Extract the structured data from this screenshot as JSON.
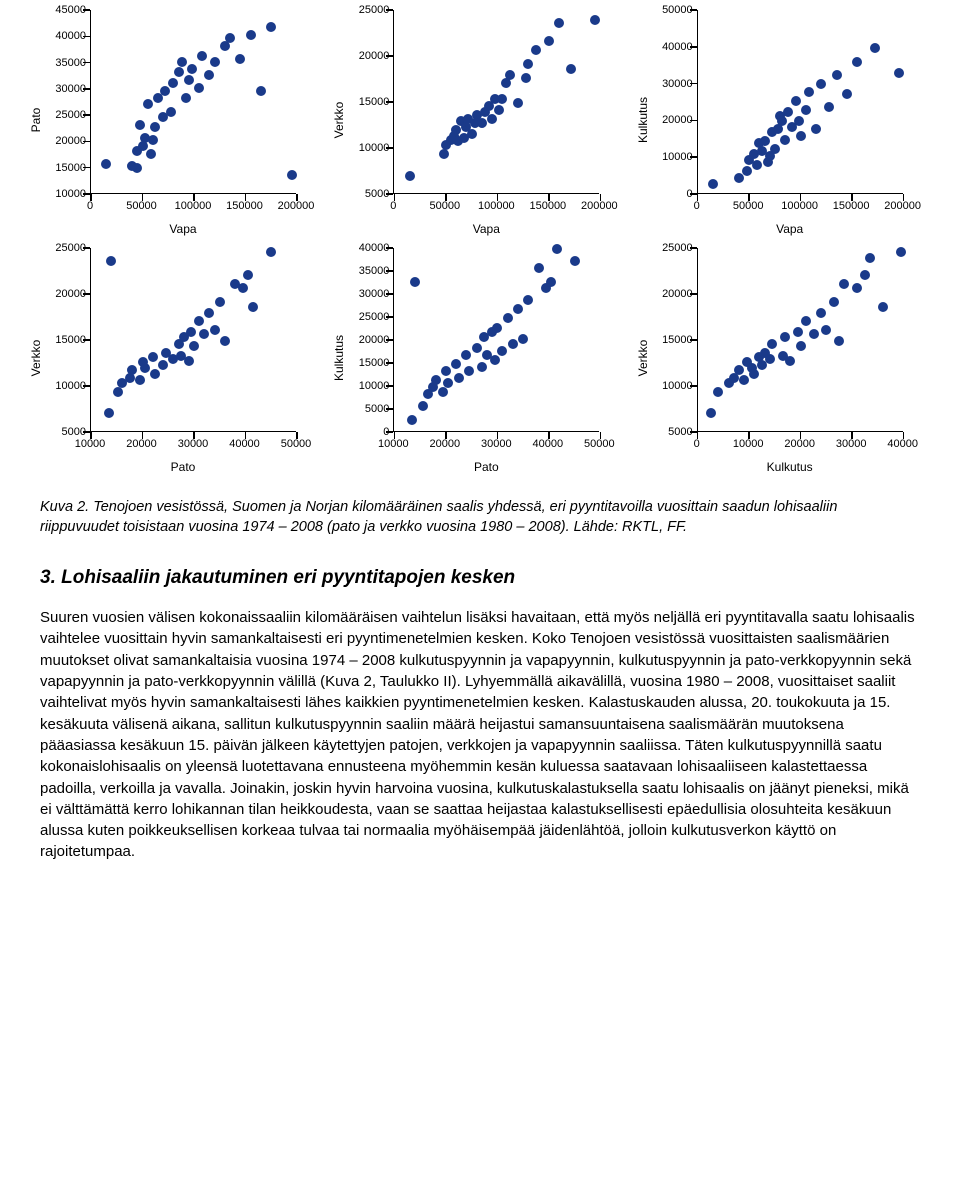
{
  "charts": [
    {
      "ylabel": "Pato",
      "xlabel": "Vapa",
      "ylim": [
        10000,
        45000
      ],
      "ytick_step": 5000,
      "xlim": [
        0,
        200000
      ],
      "xtick_step": 50000,
      "points": [
        [
          15000,
          15500
        ],
        [
          45000,
          14800
        ],
        [
          40000,
          15200
        ],
        [
          45000,
          18000
        ],
        [
          52000,
          20500
        ],
        [
          58000,
          17500
        ],
        [
          48000,
          23000
        ],
        [
          62000,
          22500
        ],
        [
          55000,
          27000
        ],
        [
          70000,
          24500
        ],
        [
          65000,
          28000
        ],
        [
          72000,
          29500
        ],
        [
          78000,
          25500
        ],
        [
          80000,
          31000
        ],
        [
          85000,
          33000
        ],
        [
          92000,
          28000
        ],
        [
          95000,
          31500
        ],
        [
          88000,
          35000
        ],
        [
          98000,
          33500
        ],
        [
          105000,
          30000
        ],
        [
          108000,
          36000
        ],
        [
          115000,
          32500
        ],
        [
          120000,
          35000
        ],
        [
          130000,
          38000
        ],
        [
          135000,
          39500
        ],
        [
          145000,
          35500
        ],
        [
          155000,
          40000
        ],
        [
          165000,
          29500
        ],
        [
          175000,
          41500
        ],
        [
          195000,
          13500
        ],
        [
          60000,
          20000
        ],
        [
          50000,
          19000
        ]
      ]
    },
    {
      "ylabel": "Verkko",
      "xlabel": "Vapa",
      "ylim": [
        5000,
        25000
      ],
      "ytick_step": 5000,
      "xlim": [
        0,
        200000
      ],
      "xtick_step": 50000,
      "points": [
        [
          15000,
          6800
        ],
        [
          48000,
          9200
        ],
        [
          50000,
          10200
        ],
        [
          55000,
          10800
        ],
        [
          58000,
          11200
        ],
        [
          62000,
          10600
        ],
        [
          60000,
          11800
        ],
        [
          68000,
          11000
        ],
        [
          65000,
          12800
        ],
        [
          70000,
          12200
        ],
        [
          75000,
          11400
        ],
        [
          72000,
          13000
        ],
        [
          80000,
          13500
        ],
        [
          78000,
          12600
        ],
        [
          85000,
          12600
        ],
        [
          88000,
          13800
        ],
        [
          92000,
          14500
        ],
        [
          95000,
          13000
        ],
        [
          98000,
          15200
        ],
        [
          105000,
          15200
        ],
        [
          108000,
          17000
        ],
        [
          112000,
          17800
        ],
        [
          120000,
          14800
        ],
        [
          128000,
          17500
        ],
        [
          130000,
          19000
        ],
        [
          138000,
          20500
        ],
        [
          150000,
          21500
        ],
        [
          160000,
          23500
        ],
        [
          172000,
          18500
        ],
        [
          195000,
          23800
        ],
        [
          102000,
          14000
        ]
      ]
    },
    {
      "ylabel": "Kulkutus",
      "xlabel": "Vapa",
      "ylim": [
        0,
        50000
      ],
      "ytick_step": 10000,
      "xlim": [
        0,
        200000
      ],
      "xtick_step": 50000,
      "points": [
        [
          15000,
          2500
        ],
        [
          40000,
          4000
        ],
        [
          48000,
          6000
        ],
        [
          50000,
          9000
        ],
        [
          55000,
          10500
        ],
        [
          58000,
          7500
        ],
        [
          62000,
          11500
        ],
        [
          60000,
          13500
        ],
        [
          65000,
          14000
        ],
        [
          68000,
          8500
        ],
        [
          72000,
          16500
        ],
        [
          75000,
          12000
        ],
        [
          78000,
          17500
        ],
        [
          80000,
          21000
        ],
        [
          85000,
          14500
        ],
        [
          82000,
          19500
        ],
        [
          88000,
          22000
        ],
        [
          92000,
          18000
        ],
        [
          95000,
          25000
        ],
        [
          98000,
          19500
        ],
        [
          105000,
          22500
        ],
        [
          108000,
          27500
        ],
        [
          115000,
          17500
        ],
        [
          120000,
          29500
        ],
        [
          128000,
          23500
        ],
        [
          135000,
          32000
        ],
        [
          145000,
          27000
        ],
        [
          155000,
          35500
        ],
        [
          172000,
          39500
        ],
        [
          195000,
          32500
        ],
        [
          70000,
          10000
        ],
        [
          100000,
          15500
        ]
      ]
    },
    {
      "ylabel": "Verkko",
      "xlabel": "Pato",
      "ylim": [
        5000,
        25000
      ],
      "ytick_step": 5000,
      "xlim": [
        10000,
        50000
      ],
      "xtick_step": 10000,
      "points": [
        [
          13500,
          7000
        ],
        [
          13800,
          23500
        ],
        [
          15200,
          9200
        ],
        [
          16000,
          10200
        ],
        [
          17500,
          10800
        ],
        [
          18000,
          11600
        ],
        [
          19500,
          10500
        ],
        [
          20000,
          12500
        ],
        [
          20500,
          11800
        ],
        [
          22500,
          11200
        ],
        [
          22000,
          13000
        ],
        [
          24000,
          12200
        ],
        [
          24500,
          13500
        ],
        [
          26000,
          12800
        ],
        [
          27000,
          14500
        ],
        [
          27500,
          13200
        ],
        [
          28000,
          15200
        ],
        [
          29000,
          12600
        ],
        [
          29500,
          15800
        ],
        [
          30000,
          14200
        ],
        [
          31000,
          17000
        ],
        [
          32000,
          15500
        ],
        [
          33000,
          17800
        ],
        [
          34000,
          16000
        ],
        [
          35000,
          19000
        ],
        [
          36000,
          14800
        ],
        [
          38000,
          21000
        ],
        [
          39500,
          20500
        ],
        [
          40500,
          22000
        ],
        [
          41500,
          18500
        ],
        [
          45000,
          24500
        ]
      ]
    },
    {
      "ylabel": "Kulkutus",
      "xlabel": "Pato",
      "ylim": [
        0,
        40000
      ],
      "ytick_step": 5000,
      "xlim": [
        10000,
        50000
      ],
      "xtick_step": 10000,
      "points": [
        [
          13500,
          2500
        ],
        [
          14000,
          32500
        ],
        [
          15500,
          5500
        ],
        [
          16500,
          8000
        ],
        [
          17500,
          9500
        ],
        [
          18000,
          11000
        ],
        [
          19500,
          8500
        ],
        [
          20000,
          13000
        ],
        [
          20500,
          10500
        ],
        [
          22000,
          14500
        ],
        [
          22500,
          11500
        ],
        [
          24000,
          16500
        ],
        [
          24500,
          13000
        ],
        [
          26000,
          18000
        ],
        [
          27000,
          14000
        ],
        [
          27500,
          20500
        ],
        [
          28000,
          16500
        ],
        [
          29000,
          21500
        ],
        [
          29500,
          15500
        ],
        [
          30000,
          22500
        ],
        [
          31000,
          17500
        ],
        [
          32000,
          24500
        ],
        [
          33000,
          19000
        ],
        [
          34000,
          26500
        ],
        [
          35000,
          20000
        ],
        [
          36000,
          28500
        ],
        [
          38000,
          35500
        ],
        [
          39500,
          31000
        ],
        [
          40500,
          32500
        ],
        [
          41500,
          39500
        ],
        [
          45000,
          37000
        ]
      ]
    },
    {
      "ylabel": "Verkko",
      "xlabel": "Kulkutus",
      "ylim": [
        5000,
        25000
      ],
      "ytick_step": 5000,
      "xlim": [
        0,
        40000
      ],
      "xtick_step": 10000,
      "points": [
        [
          2500,
          7000
        ],
        [
          4000,
          9200
        ],
        [
          6000,
          10200
        ],
        [
          7000,
          10800
        ],
        [
          8000,
          11600
        ],
        [
          9000,
          10500
        ],
        [
          9500,
          12500
        ],
        [
          10500,
          11800
        ],
        [
          11000,
          11200
        ],
        [
          12000,
          13000
        ],
        [
          12500,
          12200
        ],
        [
          13000,
          13500
        ],
        [
          14000,
          12800
        ],
        [
          14500,
          14500
        ],
        [
          16500,
          13200
        ],
        [
          17000,
          15200
        ],
        [
          18000,
          12600
        ],
        [
          19500,
          15800
        ],
        [
          20000,
          14200
        ],
        [
          21000,
          17000
        ],
        [
          22500,
          15500
        ],
        [
          24000,
          17800
        ],
        [
          25000,
          16000
        ],
        [
          26500,
          19000
        ],
        [
          27500,
          14800
        ],
        [
          28500,
          21000
        ],
        [
          31000,
          20500
        ],
        [
          32500,
          22000
        ],
        [
          33500,
          23800
        ],
        [
          36000,
          18500
        ],
        [
          39500,
          24500
        ]
      ]
    }
  ],
  "caption_html": "Kuva 2. Tenojoen vesistössä, Suomen ja Norjan kilomääräinen saalis yhdessä, eri pyyntitavoilla vuosittain saadun lohisaaliin riippuvuudet toisistaan vuosina 1974 – 2008 (pato ja verkko vuosina 1980 – 2008). Lähde: RKTL, FF.",
  "section_heading": "3. Lohisaaliin jakautuminen eri pyyntitapojen kesken",
  "body_text": "Suuren vuosien välisen kokonaissaaliin kilomääräisen vaihtelun lisäksi havaitaan, että myös neljällä eri pyyntitavalla saatu lohisaalis vaihtelee vuosittain hyvin samankaltaisesti eri pyyntimenetelmien kesken. Koko Tenojoen vesistössä vuosittaisten saalismäärien muutokset olivat samankaltaisia vuosina 1974 – 2008 kulkutuspyynnin ja vapapyynnin, kulkutuspyynnin ja pato-verkkopyynnin sekä vapapyynnin ja pato-verkkopyynnin välillä (Kuva 2, Taulukko II). Lyhyemmällä aikavälillä, vuosina 1980 – 2008, vuosittaiset saaliit vaihtelivat myös hyvin samankaltaisesti lähes kaikkien pyyntimenetelmien kesken. Kalastuskauden alussa, 20. toukokuuta ja 15. kesäkuuta välisenä aikana, sallitun kulkutuspyynnin saaliin määrä heijastui samansuuntaisena saalismäärän muutoksena pääasiassa kesäkuun 15. päivän jälkeen käytettyjen patojen, verkkojen ja vapapyynnin saaliissa. Täten kulkutuspyynnillä saatu kokonaislohisaalis on yleensä luotettavana ennusteena myöhemmin kesän kuluessa saatavaan lohisaaliiseen kalastettaessa padoilla, verkoilla ja vavalla. Joinakin, joskin hyvin harvoina vuosina, kulkutuskalastuksella saatu lohisaalis on jäänyt pieneksi, mikä ei välttämättä kerro lohikannan tilan heikkoudesta, vaan se saattaa heijastaa kalastuksellisesti epäedullisia olosuhteita kesäkuun alussa kuten poikkeuksellisen korkeaa tulvaa tai normaalia myöhäisempää jäidenlähtöä, jolloin kulkutusverkon käyttö on rajoitetumpaa.",
  "point_color": "#1a3a8a",
  "background_color": "#ffffff"
}
